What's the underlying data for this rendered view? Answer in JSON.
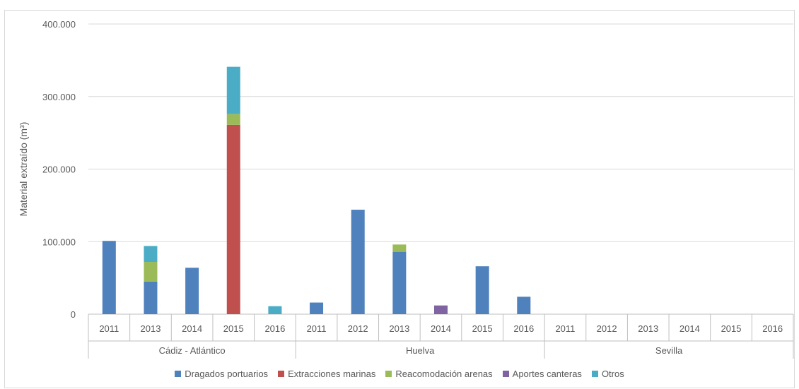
{
  "chart_data": {
    "type": "bar",
    "stacked": true,
    "ylabel": "Material extraído (m³)",
    "ylim": [
      0,
      400000
    ],
    "yticks": [
      "0",
      "100.000",
      "200.000",
      "300.000",
      "400.000"
    ],
    "ytick_values": [
      0,
      100000,
      200000,
      300000,
      400000
    ],
    "grid": true,
    "legend_position": "bottom",
    "groups": [
      {
        "name": "Cádiz - Atlántico",
        "categories": [
          "2011",
          "2013",
          "2014",
          "2015",
          "2016"
        ]
      },
      {
        "name": "Huelva",
        "categories": [
          "2011",
          "2012",
          "2013",
          "2014",
          "2015",
          "2016"
        ]
      },
      {
        "name": "Sevilla",
        "categories": [
          "2011",
          "2012",
          "2013",
          "2014",
          "2015",
          "2016"
        ]
      }
    ],
    "series": [
      {
        "name": "Dragados portuarios",
        "color": "#4f81bd",
        "values": [
          101000,
          45000,
          64000,
          0,
          0,
          16000,
          144000,
          86000,
          0,
          66000,
          24000,
          0,
          0,
          0,
          0,
          0,
          0
        ]
      },
      {
        "name": "Extracciones marinas",
        "color": "#c0504d",
        "values": [
          0,
          0,
          0,
          261000,
          0,
          0,
          0,
          0,
          0,
          0,
          0,
          0,
          0,
          0,
          0,
          0,
          0
        ]
      },
      {
        "name": "Reacomodación arenas",
        "color": "#9bbb59",
        "values": [
          0,
          27000,
          0,
          15000,
          0,
          0,
          0,
          10000,
          0,
          0,
          0,
          0,
          0,
          0,
          0,
          0,
          0
        ]
      },
      {
        "name": "Aportes canteras",
        "color": "#8064a2",
        "values": [
          0,
          0,
          0,
          0,
          0,
          0,
          0,
          0,
          12000,
          0,
          0,
          0,
          0,
          0,
          0,
          0,
          0
        ]
      },
      {
        "name": "Otros",
        "color": "#4bacc6",
        "values": [
          0,
          22000,
          0,
          65000,
          11000,
          0,
          0,
          0,
          0,
          0,
          0,
          0,
          0,
          0,
          0,
          0,
          0
        ]
      }
    ]
  }
}
